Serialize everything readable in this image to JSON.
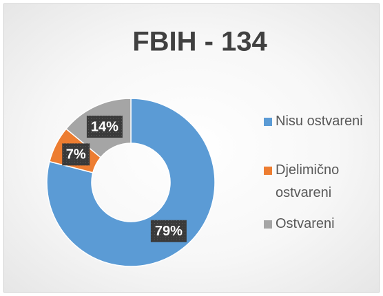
{
  "chart_data": {
    "type": "donut",
    "title": "FBIH - 134",
    "categories": [
      "Nisu ostvareni",
      "Djelimično ostvareni",
      "Ostvareni"
    ],
    "values": [
      79,
      7,
      14
    ],
    "value_labels": [
      "79%",
      "7%",
      "14%"
    ],
    "colors": [
      "#5b9bd5",
      "#ed7d31",
      "#a5a5a5"
    ],
    "legend": "right"
  }
}
